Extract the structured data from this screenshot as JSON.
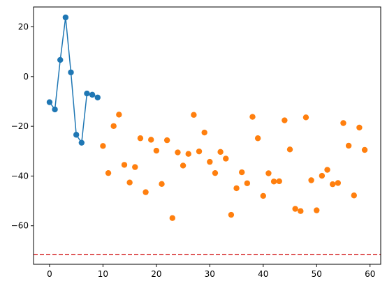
{
  "chart_data": {
    "type": "scatter",
    "title": "",
    "xlabel": "",
    "ylabel": "",
    "xlim": [
      -3,
      62
    ],
    "ylim": [
      -75.5,
      28
    ],
    "grid": false,
    "x_ticks": [
      0,
      10,
      20,
      30,
      40,
      50,
      60
    ],
    "y_ticks": [
      20,
      0,
      -20,
      -40,
      -60
    ],
    "x_tick_labels": [
      "0",
      "10",
      "20",
      "30",
      "40",
      "50",
      "60"
    ],
    "y_tick_labels": [
      "20",
      "0",
      "−20",
      "−40",
      "−60"
    ],
    "series": [
      {
        "style": "line-markers",
        "color": "#1f77b4",
        "x": [
          0,
          1,
          2,
          3,
          4,
          5,
          6,
          7,
          8,
          9
        ],
        "y": [
          -10.3,
          -13.2,
          6.7,
          23.8,
          1.7,
          -23.4,
          -26.6,
          -6.8,
          -7.3,
          -8.4
        ]
      },
      {
        "style": "markers",
        "color": "#ff7f0e",
        "x": [
          10,
          11,
          12,
          13,
          14,
          15,
          16,
          17,
          18,
          19,
          20,
          21,
          22,
          23,
          24,
          25,
          26,
          27,
          28,
          29,
          30,
          31,
          32,
          33,
          34,
          35,
          36,
          37,
          38,
          39,
          40,
          41,
          42,
          43,
          44,
          45,
          46,
          47,
          48,
          49,
          50,
          51,
          52,
          53,
          54,
          55,
          56,
          57,
          58,
          59
        ],
        "y": [
          -27.9,
          -38.8,
          -19.9,
          -15.3,
          -35.5,
          -42.6,
          -36.4,
          -24.8,
          -46.5,
          -25.4,
          -29.8,
          -43.2,
          -25.6,
          -56.9,
          -30.5,
          -35.8,
          -31.1,
          -15.4,
          -30.1,
          -22.5,
          -34.3,
          -38.8,
          -30.3,
          -33.0,
          -55.6,
          -44.9,
          -38.5,
          -42.9,
          -16.2,
          -24.8,
          -48.0,
          -38.9,
          -42.2,
          -42.1,
          -17.6,
          -29.3,
          -53.2,
          -54.1,
          -16.4,
          -41.7,
          -53.8,
          -39.9,
          -37.5,
          -43.3,
          -42.8,
          -18.7,
          -27.8,
          -47.8,
          -20.5,
          -29.5
        ]
      }
    ],
    "reference_line": {
      "orientation": "horizontal",
      "y": -71.5,
      "style": "dashed",
      "color": "#d62728"
    }
  }
}
